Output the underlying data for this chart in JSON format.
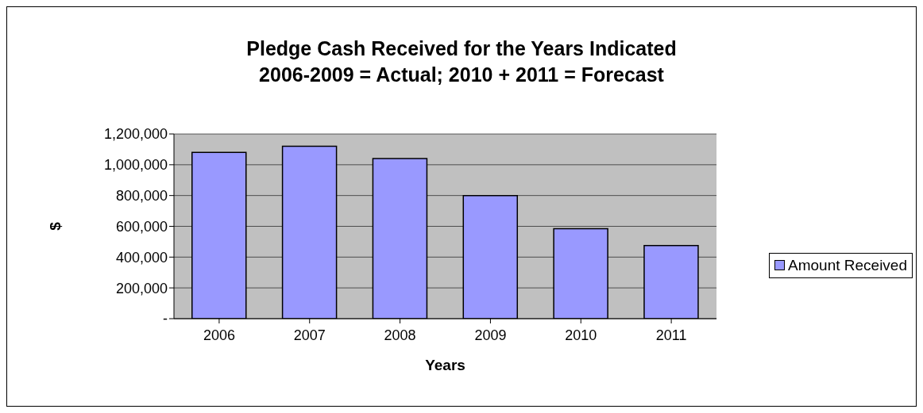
{
  "chart_data": {
    "type": "bar",
    "title": "Pledge Cash Received for the Years Indicated",
    "subtitle": "2006-2009 = Actual; 2010 + 2011 = Forecast",
    "xlabel": "Years",
    "ylabel": "$",
    "categories": [
      "2006",
      "2007",
      "2008",
      "2009",
      "2010",
      "2011"
    ],
    "series": [
      {
        "name": "Amount Received",
        "color": "#9999ff",
        "values": [
          1080000,
          1120000,
          1040000,
          800000,
          585000,
          475000
        ]
      }
    ],
    "ylim": [
      0,
      1200000
    ],
    "yticks": [
      {
        "value": 0,
        "label": "-"
      },
      {
        "value": 200000,
        "label": "200,000"
      },
      {
        "value": 400000,
        "label": "400,000"
      },
      {
        "value": 600000,
        "label": "600,000"
      },
      {
        "value": 800000,
        "label": "800,000"
      },
      {
        "value": 1000000,
        "label": "1,000,000"
      },
      {
        "value": 1200000,
        "label": "1,200,000"
      }
    ],
    "grid": "y",
    "legend": "right"
  }
}
